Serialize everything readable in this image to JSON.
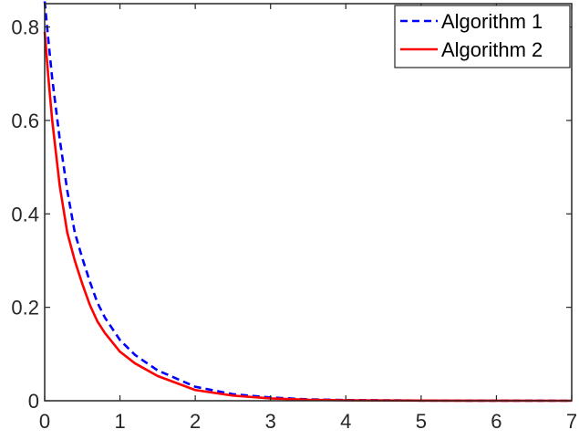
{
  "chart_data": {
    "type": "line",
    "title": "",
    "xlabel": "",
    "ylabel": "",
    "xlim": [
      0,
      7
    ],
    "ylim": [
      0,
      0.85
    ],
    "x_ticks": [
      0,
      1,
      2,
      3,
      4,
      5,
      6,
      7
    ],
    "x_tick_labels": [
      "0",
      "1",
      "2",
      "3",
      "4",
      "5",
      "6",
      "7"
    ],
    "y_ticks": [
      0,
      0.2,
      0.4,
      0.6,
      0.8
    ],
    "y_tick_labels": [
      "0",
      "0.2",
      "0.4",
      "0.6",
      "0.8"
    ],
    "grid": false,
    "legend_position": "top-right",
    "series": [
      {
        "name": "Algorithm 1",
        "color": "#0000ff",
        "line_style": "dashed",
        "x": [
          0,
          0.05,
          0.1,
          0.2,
          0.3,
          0.4,
          0.5,
          0.6,
          0.7,
          0.8,
          1.0,
          1.2,
          1.5,
          2.0,
          2.5,
          3.0,
          3.5,
          4.0,
          5.0,
          6.0,
          7.0
        ],
        "y": [
          0.855,
          0.77,
          0.69,
          0.56,
          0.45,
          0.36,
          0.305,
          0.255,
          0.21,
          0.178,
          0.13,
          0.098,
          0.065,
          0.03,
          0.014,
          0.007,
          0.003,
          0.0015,
          0.0004,
          0.0001,
          0.0
        ]
      },
      {
        "name": "Algorithm 2",
        "color": "#ff0000",
        "line_style": "solid",
        "x": [
          0,
          0.05,
          0.1,
          0.2,
          0.3,
          0.4,
          0.5,
          0.6,
          0.7,
          0.8,
          1.0,
          1.2,
          1.5,
          2.0,
          2.5,
          3.0,
          3.5,
          4.0,
          5.0,
          6.0,
          7.0
        ],
        "y": [
          0.79,
          0.69,
          0.6,
          0.46,
          0.36,
          0.3,
          0.25,
          0.205,
          0.17,
          0.145,
          0.105,
          0.08,
          0.053,
          0.023,
          0.011,
          0.005,
          0.002,
          0.001,
          0.0003,
          0.0001,
          0.0
        ]
      }
    ]
  }
}
